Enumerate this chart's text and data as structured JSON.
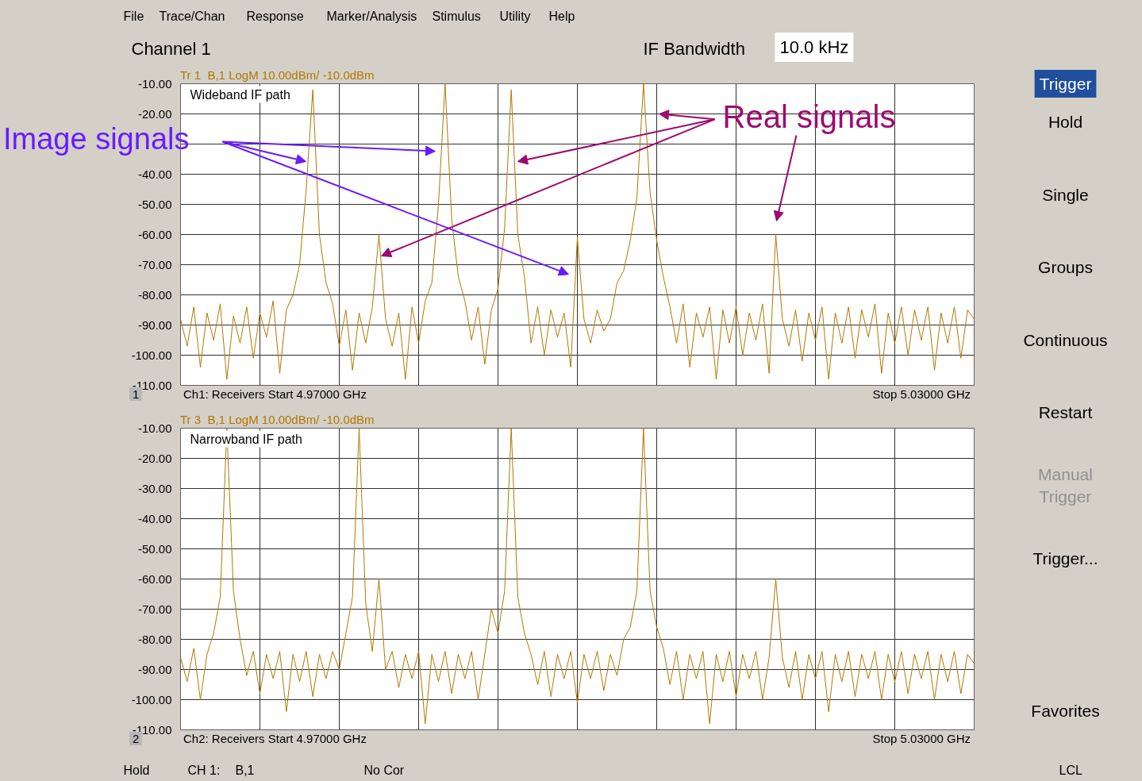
{
  "chart_data": [
    {
      "type": "line",
      "title": "Wideband IF path",
      "subtitle": "Tr 1  B,1 LogM 10.00dBm/ -10.0dBm",
      "annotations": [
        "Ch1: Receivers Start 4.97000 GHz",
        "Stop 5.03000 GHz",
        "1",
        "Image signals",
        "Real signals"
      ],
      "ylim": [
        -110,
        -10
      ],
      "yticks": [
        {
          "value": -10,
          "label": "-10.00"
        },
        {
          "value": -20,
          "label": "-20.00"
        },
        {
          "value": -30,
          "label": null
        },
        {
          "value": -40,
          "label": "-40.00"
        },
        {
          "value": -50,
          "label": "-50.00"
        },
        {
          "value": -60,
          "label": "-60.00"
        },
        {
          "value": -70,
          "label": "-70.00"
        },
        {
          "value": -80,
          "label": "-80.00"
        },
        {
          "value": -90,
          "label": "-90.00"
        },
        {
          "value": -100,
          "label": "-100.00"
        },
        {
          "value": -110,
          "label": "-110.00"
        }
      ],
      "tick_labels": "y",
      "grid": true,
      "line_style": "solid",
      "categories": [
        null,
        null,
        null,
        null,
        null,
        null,
        null,
        null,
        null,
        null,
        null,
        null,
        null,
        null,
        null,
        null,
        null,
        null,
        null,
        null,
        null,
        null,
        null,
        null,
        null,
        null,
        null,
        null,
        null,
        null,
        null,
        null,
        null,
        null,
        null,
        null,
        null,
        null,
        null,
        null,
        null,
        null,
        null,
        null,
        null,
        null,
        null,
        null,
        null,
        null,
        null,
        null,
        null,
        null,
        null,
        null,
        null,
        null,
        null,
        null,
        null,
        null,
        null,
        null,
        null,
        null,
        null,
        null,
        null,
        null,
        null,
        null,
        null,
        null,
        null,
        null,
        null,
        null,
        null,
        null,
        null,
        null,
        null,
        null,
        null,
        null,
        null,
        null,
        null,
        null,
        null,
        null,
        null,
        null,
        null,
        null,
        null,
        null,
        null,
        null,
        null,
        null,
        null,
        null,
        null,
        null,
        null,
        null,
        null,
        null,
        null,
        null,
        null,
        null,
        null,
        null,
        null,
        null,
        null,
        null,
        null
      ],
      "series": [
        {
          "color": "#b07800",
          "values": [
            -88,
            -97,
            -84,
            -104,
            -86,
            -95,
            -83,
            -108,
            -87,
            -96,
            -84,
            -101,
            -86,
            -94,
            -82,
            -106,
            -85,
            -80,
            -70,
            -45,
            -12,
            -60,
            -76,
            -83,
            -97,
            -85,
            -105,
            -86,
            -96,
            -84,
            -60,
            -88,
            -97,
            -86,
            -108,
            -84,
            -96,
            -82,
            -76,
            -50,
            -10,
            -55,
            -74,
            -82,
            -95,
            -84,
            -103,
            -85,
            -78,
            -58,
            -12,
            -60,
            -74,
            -96,
            -84,
            -100,
            -85,
            -94,
            -86,
            -104,
            -61,
            -88,
            -96,
            -85,
            -92,
            -88,
            -76,
            -72,
            -62,
            -48,
            -10,
            -46,
            -62,
            -74,
            -84,
            -96,
            -83,
            -104,
            -86,
            -94,
            -84,
            -108,
            -85,
            -96,
            -84,
            -100,
            -86,
            -95,
            -83,
            -106,
            -60,
            -88,
            -97,
            -85,
            -102,
            -86,
            -95,
            -84,
            -108,
            -86,
            -96,
            -84,
            -101,
            -85,
            -94,
            -83,
            -106,
            -86,
            -96,
            -84,
            -100,
            -85,
            -95,
            -84,
            -105,
            -86,
            -96,
            -84,
            -101,
            -85,
            -88
          ]
        }
      ]
    },
    {
      "type": "line",
      "title": "Narrowband IF path",
      "subtitle": "Tr 3  B,1 LogM 10.00dBm/ -10.0dBm",
      "annotations": [
        "Ch2: Receivers Start 4.97000 GHz",
        "Stop 5.03000 GHz",
        "2"
      ],
      "ylim": [
        -110,
        -10
      ],
      "yticks": [
        {
          "value": -10,
          "label": "-10.00"
        },
        {
          "value": -20,
          "label": "-20.00"
        },
        {
          "value": -30,
          "label": "-30.00"
        },
        {
          "value": -40,
          "label": "-40.00"
        },
        {
          "value": -50,
          "label": "-50.00"
        },
        {
          "value": -60,
          "label": "-60.00"
        },
        {
          "value": -70,
          "label": "-70.00"
        },
        {
          "value": -80,
          "label": "-80.00"
        },
        {
          "value": -90,
          "label": "-90.00"
        },
        {
          "value": -100,
          "label": "-100.00"
        },
        {
          "value": -110,
          "label": "-110.00"
        }
      ],
      "tick_labels": "y",
      "grid": true,
      "line_style": "solid",
      "categories": [
        null,
        null,
        null,
        null,
        null,
        null,
        null,
        null,
        null,
        null,
        null,
        null,
        null,
        null,
        null,
        null,
        null,
        null,
        null,
        null,
        null,
        null,
        null,
        null,
        null,
        null,
        null,
        null,
        null,
        null,
        null,
        null,
        null,
        null,
        null,
        null,
        null,
        null,
        null,
        null,
        null,
        null,
        null,
        null,
        null,
        null,
        null,
        null,
        null,
        null,
        null,
        null,
        null,
        null,
        null,
        null,
        null,
        null,
        null,
        null,
        null,
        null,
        null,
        null,
        null,
        null,
        null,
        null,
        null,
        null,
        null,
        null,
        null,
        null,
        null,
        null,
        null,
        null,
        null,
        null,
        null,
        null,
        null,
        null,
        null,
        null,
        null,
        null,
        null,
        null,
        null,
        null,
        null,
        null,
        null,
        null,
        null,
        null,
        null,
        null,
        null,
        null,
        null,
        null,
        null,
        null,
        null,
        null,
        null,
        null,
        null,
        null,
        null,
        null,
        null,
        null,
        null,
        null,
        null,
        null,
        null
      ],
      "series": [
        {
          "color": "#b07800",
          "values": [
            -86,
            -94,
            -83,
            -100,
            -85,
            -78,
            -66,
            -10,
            -64,
            -80,
            -92,
            -84,
            -98,
            -85,
            -93,
            -84,
            -104,
            -85,
            -94,
            -84,
            -99,
            -85,
            -93,
            -84,
            -90,
            -78,
            -66,
            -10,
            -68,
            -84,
            -60,
            -90,
            -84,
            -96,
            -85,
            -93,
            -84,
            -108,
            -85,
            -94,
            -84,
            -98,
            -85,
            -93,
            -84,
            -100,
            -85,
            -70,
            -78,
            -64,
            -10,
            -66,
            -78,
            -85,
            -95,
            -84,
            -99,
            -85,
            -93,
            -84,
            -101,
            -85,
            -93,
            -84,
            -97,
            -85,
            -92,
            -80,
            -76,
            -64,
            -10,
            -64,
            -76,
            -83,
            -95,
            -84,
            -100,
            -85,
            -93,
            -84,
            -108,
            -85,
            -94,
            -84,
            -99,
            -85,
            -93,
            -84,
            -100,
            -86,
            -60,
            -86,
            -96,
            -84,
            -100,
            -85,
            -93,
            -84,
            -104,
            -85,
            -94,
            -84,
            -99,
            -85,
            -93,
            -84,
            -100,
            -85,
            -94,
            -84,
            -98,
            -85,
            -93,
            -84,
            -100,
            -85,
            -94,
            -84,
            -98,
            -85,
            -88
          ]
        }
      ]
    },
    {
      "type": "other",
      "annotations": [
        "File",
        "Trace/Chan",
        "Response",
        "Marker/Analysis",
        "Stimulus",
        "Utility",
        "Help",
        "Channel 1",
        "IF Bandwidth",
        "10.0 kHz"
      ]
    },
    {
      "type": "other",
      "annotations": [
        "Trigger",
        "Hold",
        "Single",
        "Groups",
        "Continuous",
        "Restart",
        "Manual\nTrigger",
        "Trigger...",
        "Favorites"
      ]
    },
    {
      "type": "other",
      "annotations": [
        "Hold",
        "CH 1:",
        "B,1",
        "No Cor",
        "LCL"
      ]
    }
  ]
}
